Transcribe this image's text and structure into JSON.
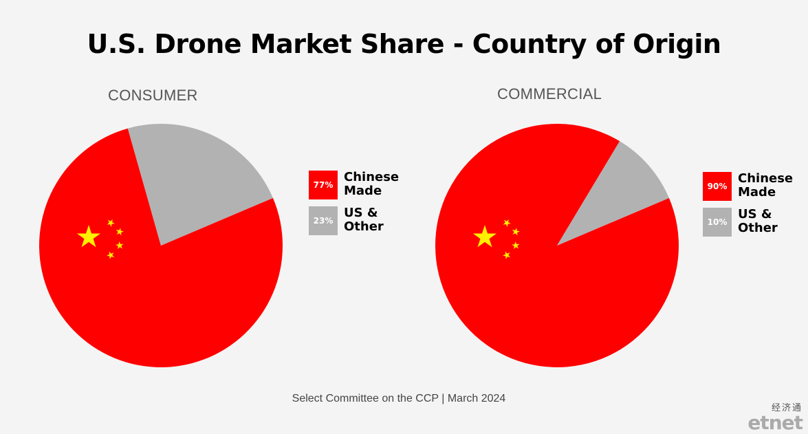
{
  "title": "U.S. Drone Market Share - Country of Origin",
  "source": "Select Committee on the CCP | March 2024",
  "watermark": {
    "cn": "经济通",
    "logo": "etnet"
  },
  "colors": {
    "chinese": "#ff0000",
    "other": "#b2b2b2",
    "star": "#ffef00"
  },
  "icons": [
    "china-flag-stars-icon"
  ],
  "chart_data": [
    {
      "type": "pie",
      "title": "CONSUMER",
      "categories": [
        "Chinese Made",
        "US & Other"
      ],
      "values": [
        77,
        23
      ],
      "value_labels": [
        "77%",
        "23%"
      ],
      "legend_labels": [
        "Chinese\nMade",
        "US &\nOther"
      ],
      "legend": "right"
    },
    {
      "type": "pie",
      "title": "COMMERCIAL",
      "categories": [
        "Chinese Made",
        "US & Other"
      ],
      "values": [
        90,
        10
      ],
      "value_labels": [
        "90%",
        "10%"
      ],
      "legend_labels": [
        "Chinese\nMade",
        "US &\nOther"
      ],
      "legend": "right"
    }
  ]
}
